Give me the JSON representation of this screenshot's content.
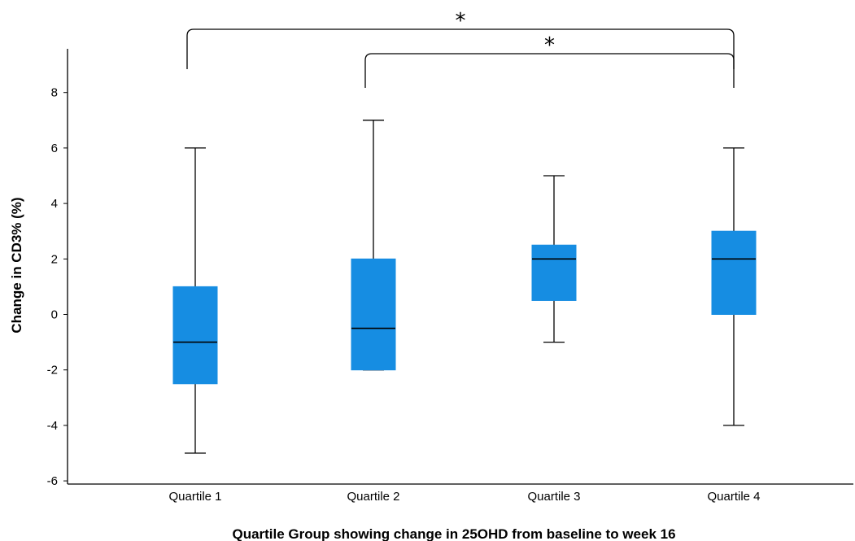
{
  "chart_data": {
    "type": "box",
    "xlabel": "Quartile Group showing change in 25OHD from baseline to week 16",
    "ylabel": "Change in CD3% (%)",
    "ylim": [
      -6,
      9.5
    ],
    "yticks": [
      "-6",
      "-4",
      "-2",
      "0",
      "2",
      "4",
      "6",
      "8"
    ],
    "categories": [
      "Quartile 1",
      "Quartile 2",
      "Quartile 3",
      "Quartile 4"
    ],
    "boxes": [
      {
        "category": "Quartile 1",
        "min": -5,
        "q1": -2.5,
        "median": -1,
        "q3": 1,
        "max": 6
      },
      {
        "category": "Quartile 2",
        "min": -2,
        "q1": -2,
        "median": -0.5,
        "q3": 2,
        "max": 7
      },
      {
        "category": "Quartile 3",
        "min": -1,
        "q1": 0.5,
        "median": 2,
        "q3": 2.5,
        "max": 5
      },
      {
        "category": "Quartile 4",
        "min": -4,
        "q1": 0,
        "median": 2,
        "q3": 3,
        "max": 6
      }
    ],
    "significance": [
      {
        "from": "Quartile 1",
        "to": "Quartile 4",
        "label": "*"
      },
      {
        "from": "Quartile 2",
        "to": "Quartile 4",
        "label": "*"
      }
    ],
    "box_color": "#168de2",
    "grid": false
  }
}
